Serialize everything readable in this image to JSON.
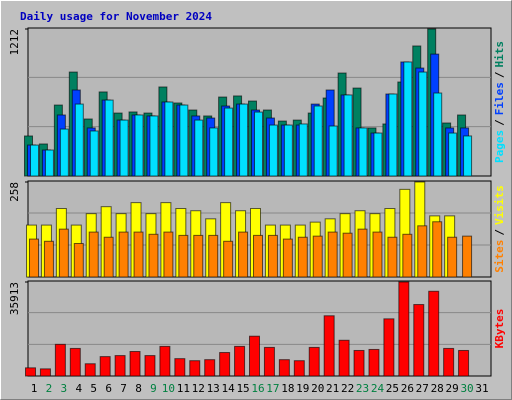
{
  "chart_data": {
    "type": "bar",
    "title": "Daily usage for November 2024",
    "categories": [
      "1",
      "2",
      "3",
      "4",
      "5",
      "6",
      "7",
      "8",
      "9",
      "10",
      "11",
      "12",
      "13",
      "14",
      "15",
      "16",
      "17",
      "18",
      "19",
      "20",
      "21",
      "22",
      "23",
      "24",
      "25",
      "26",
      "27",
      "28",
      "29",
      "30",
      "31"
    ],
    "weekend_indices": [
      1,
      2,
      8,
      9,
      15,
      16,
      22,
      23,
      29
    ],
    "weekend_color": "#008040",
    "weekday_color": "#000000",
    "legend_separator": "/",
    "panels": [
      {
        "ylim": [
          0,
          1212
        ],
        "yticks": [
          1212
        ],
        "series": [
          {
            "name": "Hits",
            "color": "#008060",
            "values": [
              330,
              264,
              585,
              857,
              470,
              693,
              519,
              528,
              519,
              734,
              602,
              544,
              495,
              651,
              660,
              618,
              544,
              453,
              461,
              519,
              643,
              849,
              725,
              396,
              429,
              775,
              1072,
              1212,
              437,
              503,
              null
            ]
          },
          {
            "name": "Files",
            "color": "#0040ff",
            "values": [
              255,
              214,
              503,
              709,
              396,
              626,
              461,
              503,
              495,
              610,
              585,
              495,
              478,
              577,
              593,
              544,
              478,
              420,
              420,
              593,
              709,
              668,
              396,
              354,
              676,
              940,
              890,
              1005,
              396,
              396,
              null
            ]
          },
          {
            "name": "Pages",
            "color": "#00e0ff",
            "values": [
              255,
              214,
              387,
              593,
              371,
              626,
              461,
              503,
              495,
              610,
              585,
              461,
              396,
              560,
              593,
              527,
              420,
              420,
              429,
              577,
              412,
              668,
              396,
              354,
              676,
              940,
              857,
              684,
              354,
              330,
              null
            ]
          }
        ]
      },
      {
        "ylim": [
          0,
          258
        ],
        "yticks": [
          258
        ],
        "series": [
          {
            "name": "Visits",
            "color": "#ffff00",
            "values": [
              141,
              141,
              186,
              141,
              172,
              191,
              172,
              202,
              172,
              202,
              186,
              180,
              158,
              202,
              180,
              186,
              141,
              141,
              141,
              149,
              158,
              172,
              180,
              172,
              186,
              238,
              258,
              166,
              166,
              null,
              null
            ]
          },
          {
            "name": "Sites",
            "color": "#ff8000",
            "values": [
              103,
              97,
              130,
              91,
              122,
              108,
              122,
              122,
              116,
              122,
              113,
              113,
              113,
              97,
              122,
              113,
              113,
              103,
              108,
              111,
              122,
              119,
              130,
              122,
              108,
              116,
              139,
              150,
              108,
              111,
              null
            ]
          }
        ]
      },
      {
        "ylim": [
          0,
          35913
        ],
        "yticks": [
          35913
        ],
        "series": [
          {
            "name": "KBytes",
            "color": "#ff0000",
            "values": [
              3120,
              2730,
              12090,
              10530,
              4680,
              7410,
              7800,
              9360,
              7800,
              11310,
              6630,
              5850,
              6240,
              8970,
              11310,
              15210,
              10920,
              6240,
              5850,
              10920,
              23010,
              13650,
              9750,
              10140,
              21840,
              35913,
              27300,
              32370,
              10530,
              9750,
              null
            ]
          }
        ]
      }
    ]
  }
}
